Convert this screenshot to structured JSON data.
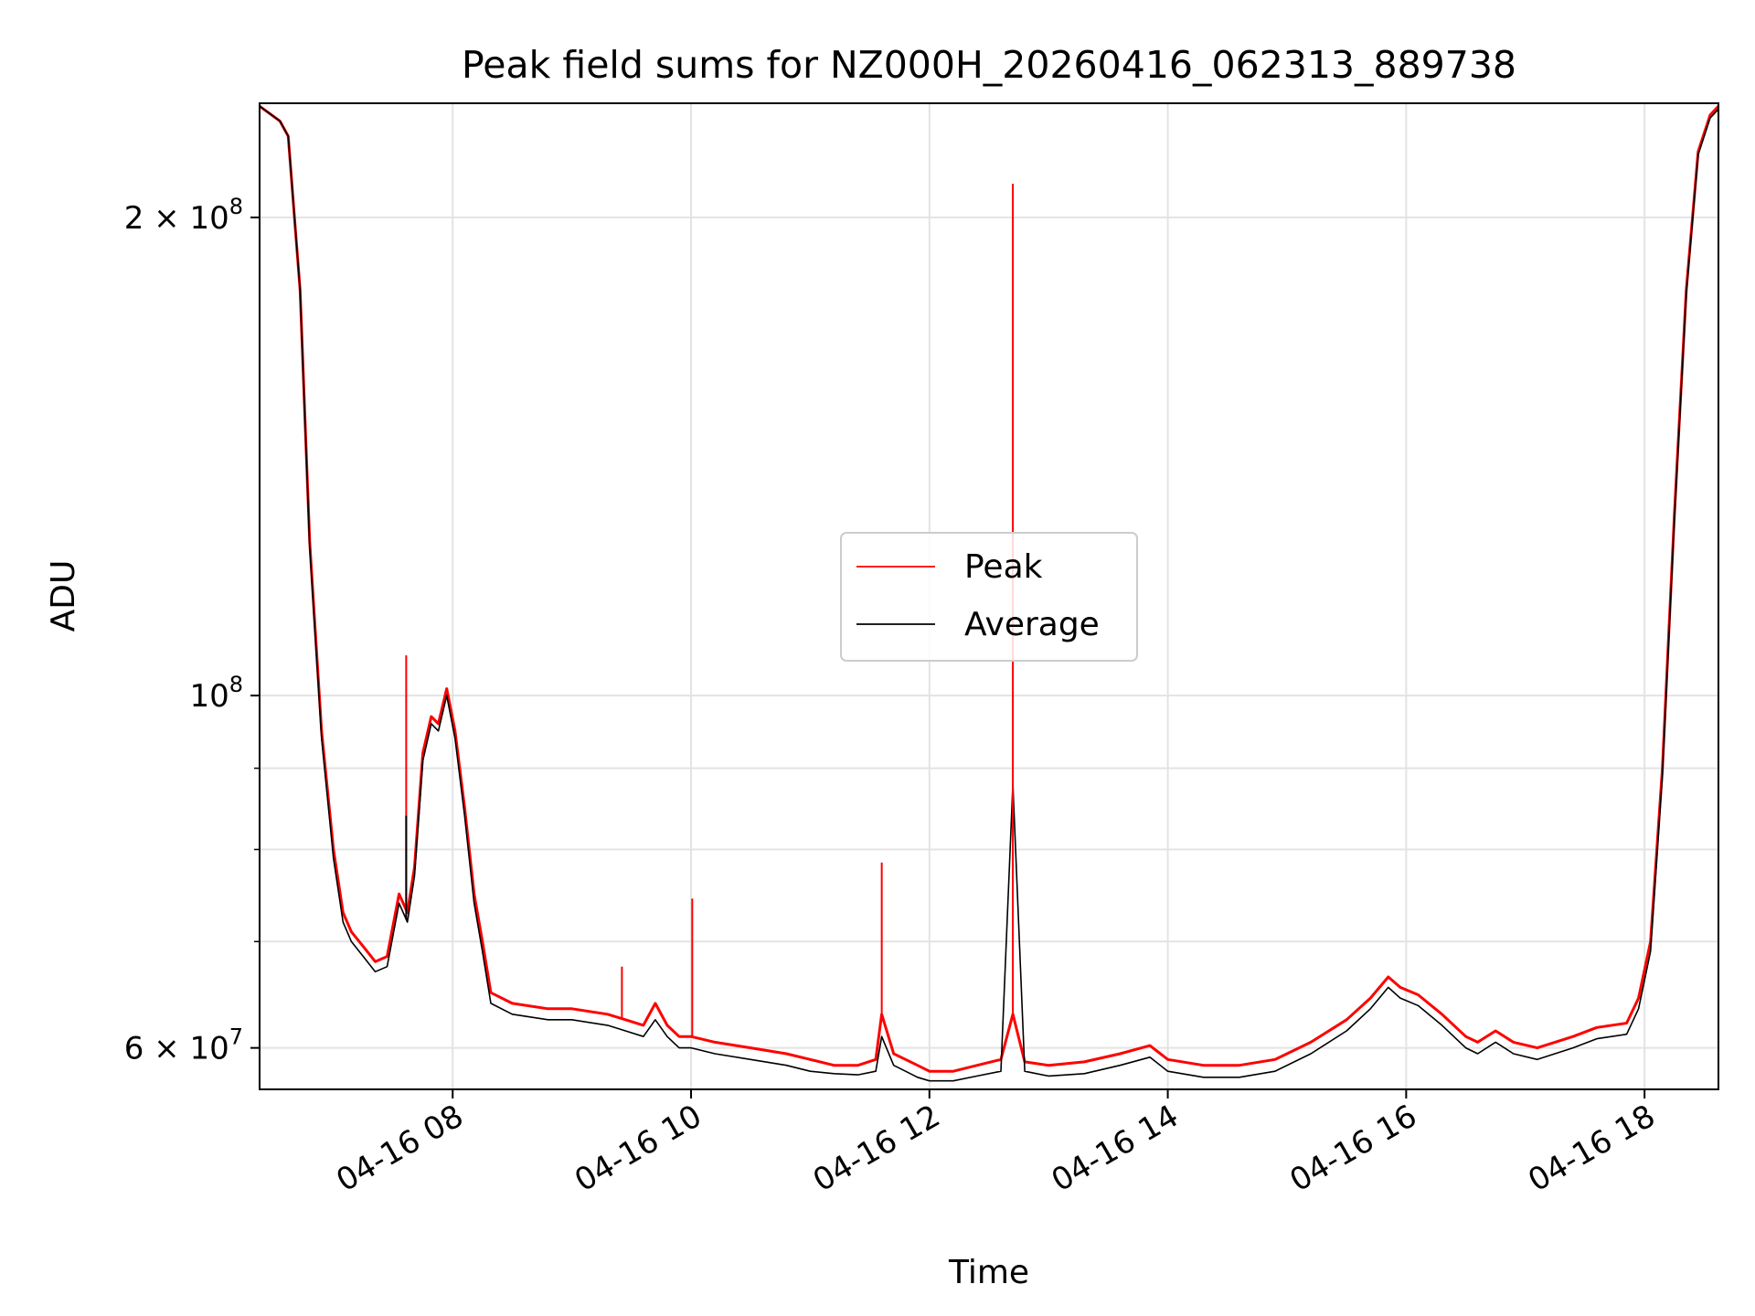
{
  "chart_data": {
    "type": "line",
    "title": "Peak field sums for NZ000H_20260416_062313_889738",
    "xlabel": "Time",
    "ylabel": "ADU",
    "x_unit": "hours of 2026-04-16 (local)",
    "xlim": [
      6.38,
      18.62
    ],
    "ylim": [
      56500000,
      236000000
    ],
    "yscale": "log",
    "grid": true,
    "legend_position": "center",
    "x_ticks": [
      {
        "value": 8,
        "label": "04-16 08"
      },
      {
        "value": 10,
        "label": "04-16 10"
      },
      {
        "value": 12,
        "label": "04-16 12"
      },
      {
        "value": 14,
        "label": "04-16 14"
      },
      {
        "value": 16,
        "label": "04-16 16"
      },
      {
        "value": 18,
        "label": "04-16 18"
      }
    ],
    "y_ticks_major": [
      {
        "value": 60000000,
        "label": "6 × 10⁷",
        "mantissa": "6 × 10",
        "exp": "7"
      },
      {
        "value": 100000000,
        "label": "10⁸",
        "mantissa": "10",
        "exp": "8"
      },
      {
        "value": 200000000,
        "label": "2 × 10⁸",
        "mantissa": "2 × 10",
        "exp": "8"
      }
    ],
    "y_ticks_minor": [
      70000000,
      80000000,
      90000000
    ],
    "colors": {
      "peak": "#ff0000",
      "average": "#000000"
    },
    "series": [
      {
        "name": "Peak",
        "color": "#ff0000",
        "x": [
          6.38,
          6.55,
          6.62,
          6.72,
          6.8,
          6.9,
          7.0,
          7.08,
          7.15,
          7.25,
          7.35,
          7.45,
          7.55,
          7.62,
          7.68,
          7.75,
          7.82,
          7.88,
          7.95,
          8.02,
          8.1,
          8.18,
          8.25,
          8.32,
          8.5,
          8.8,
          9.0,
          9.3,
          9.45,
          9.6,
          9.7,
          9.8,
          9.9,
          10.0,
          10.2,
          10.5,
          10.8,
          11.0,
          11.2,
          11.4,
          11.55,
          11.6,
          11.7,
          11.8,
          11.9,
          12.0,
          12.2,
          12.4,
          12.6,
          12.7,
          12.8,
          13.0,
          13.3,
          13.6,
          13.85,
          14.0,
          14.3,
          14.6,
          14.9,
          15.2,
          15.5,
          15.7,
          15.85,
          15.95,
          16.1,
          16.3,
          16.5,
          16.6,
          16.75,
          16.9,
          17.1,
          17.4,
          17.6,
          17.85,
          17.95,
          18.05,
          18.15,
          18.25,
          18.35,
          18.45,
          18.55,
          18.62
        ],
        "y": [
          235000000,
          230000000,
          225000000,
          180000000,
          125000000,
          95000000,
          80000000,
          73000000,
          71000000,
          69500000,
          68000000,
          68500000,
          75000000,
          73000000,
          78000000,
          92000000,
          97000000,
          96000000,
          101000000,
          95000000,
          85000000,
          75000000,
          70000000,
          65000000,
          64000000,
          63500000,
          63500000,
          63000000,
          62500000,
          62000000,
          64000000,
          62000000,
          61000000,
          61000000,
          60500000,
          60000000,
          59500000,
          59000000,
          58500000,
          58500000,
          59000000,
          63000000,
          59500000,
          59000000,
          58500000,
          58000000,
          58000000,
          58500000,
          59000000,
          63000000,
          58800000,
          58500000,
          58800000,
          59500000,
          60200000,
          59000000,
          58500000,
          58500000,
          59000000,
          60500000,
          62500000,
          64500000,
          66500000,
          65500000,
          64800000,
          63000000,
          61000000,
          60500000,
          61500000,
          60500000,
          60000000,
          61000000,
          61800000,
          62200000,
          64500000,
          70000000,
          90000000,
          130000000,
          180000000,
          220000000,
          232000000,
          235000000
        ],
        "spikes": [
          {
            "x": 7.61,
            "y": 106000000
          },
          {
            "x": 9.42,
            "y": 67500000
          },
          {
            "x": 10.01,
            "y": 74500000
          },
          {
            "x": 11.6,
            "y": 78500000
          },
          {
            "x": 12.7,
            "y": 210000000
          }
        ]
      },
      {
        "name": "Average",
        "color": "#000000",
        "x": [
          6.38,
          6.55,
          6.62,
          6.72,
          6.8,
          6.9,
          7.0,
          7.08,
          7.15,
          7.25,
          7.35,
          7.45,
          7.55,
          7.62,
          7.68,
          7.75,
          7.82,
          7.88,
          7.95,
          8.02,
          8.1,
          8.18,
          8.25,
          8.32,
          8.5,
          8.8,
          9.0,
          9.3,
          9.45,
          9.6,
          9.7,
          9.8,
          9.9,
          10.0,
          10.2,
          10.5,
          10.8,
          11.0,
          11.2,
          11.4,
          11.55,
          11.6,
          11.7,
          11.8,
          11.9,
          12.0,
          12.2,
          12.4,
          12.6,
          12.7,
          12.8,
          13.0,
          13.3,
          13.6,
          13.85,
          14.0,
          14.3,
          14.6,
          14.9,
          15.2,
          15.5,
          15.7,
          15.85,
          15.95,
          16.1,
          16.3,
          16.5,
          16.6,
          16.75,
          16.9,
          17.1,
          17.4,
          17.6,
          17.85,
          17.95,
          18.05,
          18.15,
          18.25,
          18.35,
          18.45,
          18.55,
          18.62
        ],
        "y": [
          235000000,
          230000000,
          225000000,
          180000000,
          124000000,
          94000000,
          79000000,
          72000000,
          70000000,
          68500000,
          67000000,
          67500000,
          74000000,
          72000000,
          77000000,
          91000000,
          96000000,
          95000000,
          100000000,
          94000000,
          84000000,
          74000000,
          69000000,
          64000000,
          63000000,
          62500000,
          62500000,
          62000000,
          61500000,
          61000000,
          62500000,
          61000000,
          60000000,
          60000000,
          59500000,
          59000000,
          58500000,
          58000000,
          57800000,
          57700000,
          58000000,
          61000000,
          58500000,
          58000000,
          57500000,
          57200000,
          57200000,
          57600000,
          58000000,
          88000000,
          58000000,
          57600000,
          57800000,
          58500000,
          59200000,
          58000000,
          57500000,
          57500000,
          58000000,
          59500000,
          61500000,
          63500000,
          65500000,
          64500000,
          63800000,
          62000000,
          60000000,
          59500000,
          60500000,
          59500000,
          59000000,
          60000000,
          60800000,
          61200000,
          63500000,
          69000000,
          89000000,
          129000000,
          179000000,
          219000000,
          231000000,
          234000000
        ],
        "spikes": [
          {
            "x": 7.61,
            "y": 84000000
          },
          {
            "x": 12.7,
            "y": 88000000
          }
        ]
      }
    ],
    "legend": [
      {
        "name": "Peak",
        "color": "#ff0000"
      },
      {
        "name": "Average",
        "color": "#000000"
      }
    ]
  }
}
